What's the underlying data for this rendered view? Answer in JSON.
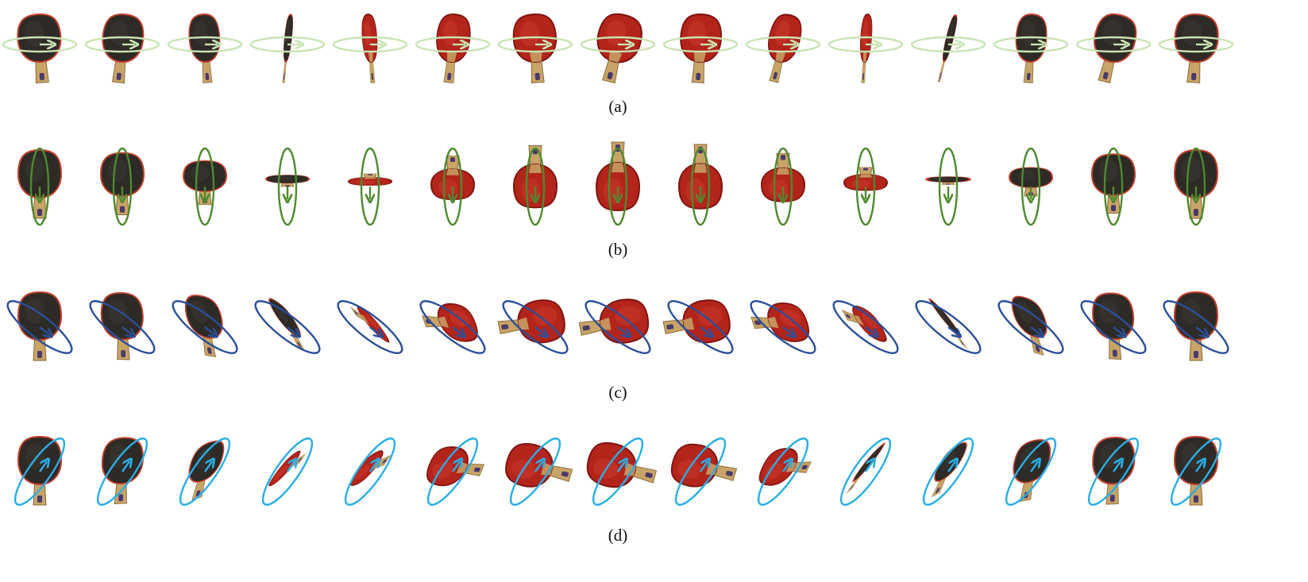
{
  "figure": {
    "rows": [
      {
        "label": "(a)",
        "axis": "horizontal",
        "ring_color": "#c9e4b4",
        "views": [
          {
            "yaw": 0,
            "side": "black"
          },
          {
            "yaw": 20,
            "side": "black"
          },
          {
            "yaw": 45,
            "side": "black"
          },
          {
            "yaw": 80,
            "side": "black"
          },
          {
            "yaw": 110,
            "side": "red"
          },
          {
            "yaw": 140,
            "side": "red"
          },
          {
            "yaw": 170,
            "side": "red"
          },
          {
            "yaw": 180,
            "side": "red"
          },
          {
            "yaw": 200,
            "side": "red"
          },
          {
            "yaw": 225,
            "side": "red"
          },
          {
            "yaw": 255,
            "side": "red"
          },
          {
            "yaw": 280,
            "side": "black"
          },
          {
            "yaw": 315,
            "side": "black"
          },
          {
            "yaw": 340,
            "side": "black"
          },
          {
            "yaw": 360,
            "side": "black"
          }
        ]
      },
      {
        "label": "(b)",
        "axis": "vertical",
        "ring_color": "#4e8a2e",
        "views": [
          {
            "pitch": 0,
            "side": "black"
          },
          {
            "pitch": 25,
            "side": "black"
          },
          {
            "pitch": 50,
            "side": "black"
          },
          {
            "pitch": 80,
            "side": "black"
          },
          {
            "pitch": 100,
            "side": "red"
          },
          {
            "pitch": 130,
            "side": "red"
          },
          {
            "pitch": 155,
            "side": "red"
          },
          {
            "pitch": 180,
            "side": "red"
          },
          {
            "pitch": 200,
            "side": "red"
          },
          {
            "pitch": 225,
            "side": "red"
          },
          {
            "pitch": 250,
            "side": "red"
          },
          {
            "pitch": 270,
            "side": "edge"
          },
          {
            "pitch": 295,
            "side": "black"
          },
          {
            "pitch": 330,
            "side": "black"
          },
          {
            "pitch": 360,
            "side": "black"
          }
        ]
      },
      {
        "label": "(c)",
        "axis": "diagonal-down",
        "ring_color": "#2b4f9a",
        "views": [
          {
            "angle": 0,
            "side": "black"
          },
          {
            "angle": 20,
            "side": "black"
          },
          {
            "angle": 45,
            "side": "black"
          },
          {
            "angle": 75,
            "side": "black"
          },
          {
            "angle": 100,
            "side": "red"
          },
          {
            "angle": 130,
            "side": "red"
          },
          {
            "angle": 160,
            "side": "red"
          },
          {
            "angle": 180,
            "side": "red"
          },
          {
            "angle": 200,
            "side": "red"
          },
          {
            "angle": 225,
            "side": "red"
          },
          {
            "angle": 250,
            "side": "red"
          },
          {
            "angle": 275,
            "side": "edge"
          },
          {
            "angle": 305,
            "side": "black"
          },
          {
            "angle": 335,
            "side": "black"
          },
          {
            "angle": 360,
            "side": "black"
          }
        ]
      },
      {
        "label": "(d)",
        "axis": "diagonal-up",
        "ring_color": "#29aee6",
        "views": [
          {
            "angle": 0,
            "side": "black"
          },
          {
            "angle": 25,
            "side": "black"
          },
          {
            "angle": 55,
            "side": "black"
          },
          {
            "angle": 80,
            "side": "red"
          },
          {
            "angle": 105,
            "side": "red"
          },
          {
            "angle": 135,
            "side": "red"
          },
          {
            "angle": 160,
            "side": "red"
          },
          {
            "angle": 180,
            "side": "red"
          },
          {
            "angle": 205,
            "side": "red"
          },
          {
            "angle": 235,
            "side": "red"
          },
          {
            "angle": 265,
            "side": "edge"
          },
          {
            "angle": 290,
            "side": "black"
          },
          {
            "angle": 315,
            "side": "black"
          },
          {
            "angle": 340,
            "side": "black"
          },
          {
            "angle": 360,
            "side": "black"
          }
        ]
      }
    ],
    "colors": {
      "rubber_black": "#2e2a26",
      "rubber_black_edge": "#141210",
      "rubber_red": "#b3241a",
      "rubber_red_dark": "#7e1410",
      "rubber_border": "#c0402c",
      "handle_wood": "#c8a467",
      "handle_wood_dark": "#8a6a38",
      "handle_logo": "#4a3a6a"
    }
  }
}
